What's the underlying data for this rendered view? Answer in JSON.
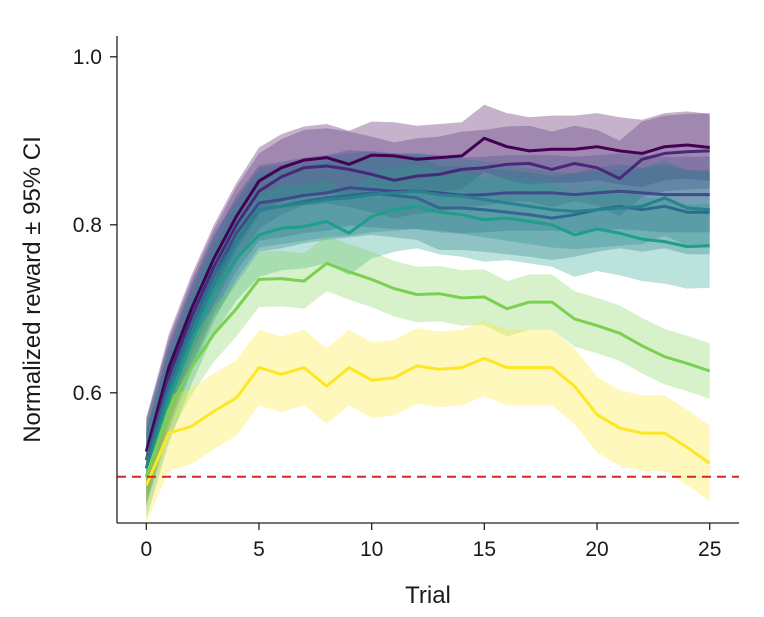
{
  "chart_data": {
    "type": "line",
    "title": "",
    "xlabel": "Trial",
    "ylabel": "Normalized reward ± 95% CI",
    "xlim": [
      -1.3,
      26.3
    ],
    "ylim": [
      0.445,
      1.02
    ],
    "xticks": [
      0,
      5,
      10,
      15,
      20,
      25
    ],
    "xtick_labels": [
      "0",
      "5",
      "10",
      "15",
      "20",
      "25"
    ],
    "yticks": [
      0.6,
      0.8,
      1.0
    ],
    "ytick_labels": [
      "0.6",
      "0.8",
      "1.0"
    ],
    "grid": false,
    "legend": "none",
    "reference_line": {
      "y": 0.5,
      "style": "dashed",
      "color": "#d62728"
    },
    "x": [
      0,
      1,
      2,
      3,
      4,
      5,
      6,
      7,
      8,
      9,
      10,
      11,
      12,
      13,
      14,
      15,
      16,
      17,
      18,
      19,
      20,
      21,
      22,
      23,
      24,
      25
    ],
    "series": [
      {
        "color": "#440154",
        "values": [
          0.53,
          0.63,
          0.7,
          0.76,
          0.81,
          0.852,
          0.868,
          0.877,
          0.88,
          0.872,
          0.883,
          0.882,
          0.878,
          0.88,
          0.882,
          0.903,
          0.893,
          0.888,
          0.89,
          0.89,
          0.893,
          0.888,
          0.885,
          0.893,
          0.895,
          0.892
        ],
        "ci": 0.04
      },
      {
        "color": "#482878",
        "values": [
          0.52,
          0.62,
          0.69,
          0.75,
          0.8,
          0.84,
          0.857,
          0.868,
          0.87,
          0.866,
          0.86,
          0.853,
          0.858,
          0.86,
          0.866,
          0.868,
          0.872,
          0.873,
          0.866,
          0.873,
          0.868,
          0.855,
          0.878,
          0.885,
          0.887,
          0.888
        ],
        "ci": 0.045
      },
      {
        "color": "#3e4a89",
        "values": [
          0.51,
          0.61,
          0.68,
          0.74,
          0.79,
          0.826,
          0.83,
          0.835,
          0.838,
          0.844,
          0.842,
          0.84,
          0.84,
          0.838,
          0.835,
          0.836,
          0.838,
          0.838,
          0.838,
          0.836,
          0.838,
          0.84,
          0.838,
          0.836,
          0.836,
          0.836
        ],
        "ci": 0.045
      },
      {
        "color": "#31688e",
        "values": [
          0.52,
          0.61,
          0.68,
          0.74,
          0.78,
          0.818,
          0.822,
          0.828,
          0.832,
          0.835,
          0.838,
          0.835,
          0.832,
          0.82,
          0.82,
          0.818,
          0.815,
          0.812,
          0.808,
          0.812,
          0.818,
          0.822,
          0.818,
          0.822,
          0.815,
          0.815
        ],
        "ci": 0.05
      },
      {
        "color": "#26828e",
        "values": [
          0.51,
          0.6,
          0.67,
          0.73,
          0.78,
          0.818,
          0.822,
          0.826,
          0.83,
          0.832,
          0.836,
          0.838,
          0.84,
          0.836,
          0.834,
          0.83,
          0.826,
          0.822,
          0.818,
          0.816,
          0.818,
          0.82,
          0.822,
          0.832,
          0.82,
          0.818
        ],
        "ci": 0.045
      },
      {
        "color": "#1f9e89",
        "values": [
          0.5,
          0.59,
          0.66,
          0.72,
          0.76,
          0.788,
          0.796,
          0.798,
          0.804,
          0.79,
          0.81,
          0.818,
          0.822,
          0.815,
          0.812,
          0.806,
          0.808,
          0.804,
          0.8,
          0.788,
          0.795,
          0.79,
          0.783,
          0.78,
          0.774,
          0.775
        ],
        "ci": 0.05
      },
      {
        "color": "#7ad151",
        "values": [
          0.5,
          0.58,
          0.63,
          0.67,
          0.7,
          0.735,
          0.736,
          0.733,
          0.754,
          0.744,
          0.735,
          0.724,
          0.717,
          0.718,
          0.713,
          0.714,
          0.7,
          0.708,
          0.708,
          0.688,
          0.68,
          0.671,
          0.656,
          0.643,
          0.635,
          0.626
        ],
        "ci": 0.033
      },
      {
        "color": "#fde725",
        "values": [
          0.49,
          0.552,
          0.56,
          0.578,
          0.594,
          0.63,
          0.622,
          0.63,
          0.608,
          0.63,
          0.615,
          0.618,
          0.632,
          0.628,
          0.63,
          0.641,
          0.63,
          0.63,
          0.63,
          0.608,
          0.574,
          0.558,
          0.552,
          0.552,
          0.535,
          0.516
        ],
        "ci": 0.045
      }
    ]
  }
}
